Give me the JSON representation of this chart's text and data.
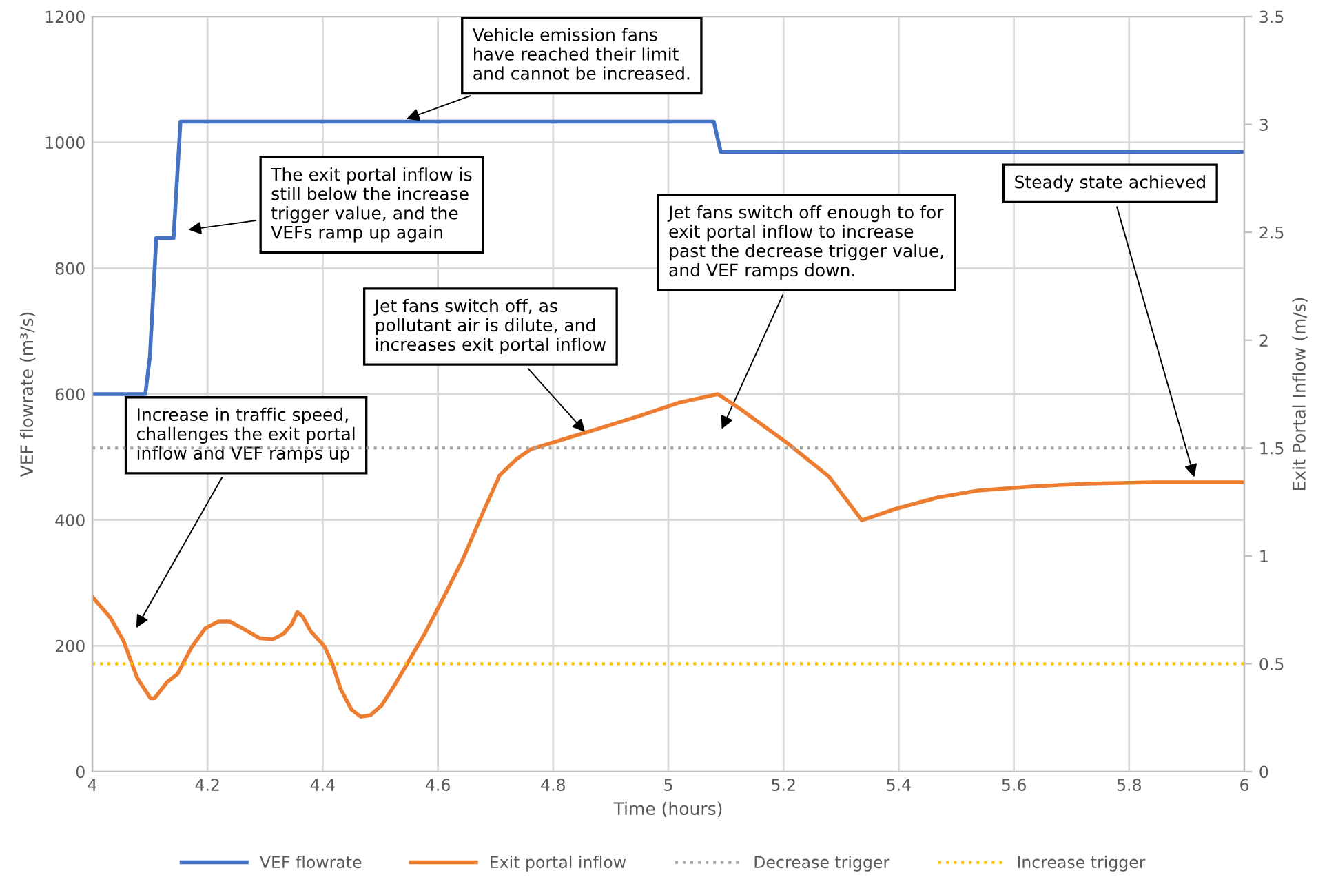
{
  "chart_data": {
    "type": "line",
    "xlabel": "Time (hours)",
    "ylabel": "VEF flowrate (m³/s)",
    "y2label": "Exit Portal Inflow (m/s)",
    "xlim": [
      4,
      6
    ],
    "xticks": [
      4,
      4.2,
      4.4,
      4.6,
      4.8,
      5,
      5.2,
      5.4,
      5.6,
      5.8,
      6
    ],
    "ylim": [
      0,
      1200
    ],
    "yticks": [
      0,
      200,
      400,
      600,
      800,
      1000,
      1200
    ],
    "y2lim": [
      0,
      3.5
    ],
    "y2ticks": [
      0,
      0.5,
      1,
      1.5,
      2,
      2.5,
      3,
      3.5
    ],
    "grid": true,
    "legend": "bottom",
    "marker": "none",
    "series": [
      {
        "name": "VEF flowrate",
        "color": "#4472c4",
        "line_style": "solid",
        "x": [
          4,
          4.092,
          4.1,
          4.111,
          4.141,
          4.153,
          5.079,
          5.091,
          6
        ],
        "values": [
          600,
          600,
          660,
          848,
          848,
          1033,
          1033,
          985,
          985
        ]
      },
      {
        "name": "Exit portal inflow",
        "color": "#ed7d31",
        "line_style": "solid",
        "axis": "y2",
        "x": [
          4,
          4.031,
          4.054,
          4.078,
          4.101,
          4.108,
          4.13,
          4.148,
          4.172,
          4.196,
          4.219,
          4.238,
          4.261,
          4.29,
          4.313,
          4.332,
          4.346,
          4.356,
          4.365,
          4.379,
          4.403,
          4.417,
          4.431,
          4.45,
          4.466,
          4.483,
          4.502,
          4.525,
          4.549,
          4.577,
          4.608,
          4.643,
          4.678,
          4.707,
          4.737,
          4.761,
          4.832,
          4.879,
          4.949,
          5.02,
          5.086,
          5.126,
          5.208,
          5.279,
          5.336,
          5.397,
          5.468,
          5.538,
          5.633,
          5.727,
          5.845,
          6
        ],
        "values": [
          0.81,
          0.715,
          0.607,
          0.434,
          0.34,
          0.34,
          0.415,
          0.453,
          0.575,
          0.664,
          0.696,
          0.696,
          0.664,
          0.619,
          0.613,
          0.639,
          0.683,
          0.74,
          0.72,
          0.651,
          0.581,
          0.498,
          0.383,
          0.287,
          0.255,
          0.262,
          0.306,
          0.402,
          0.511,
          0.639,
          0.798,
          0.983,
          1.2,
          1.373,
          1.45,
          1.494,
          1.552,
          1.59,
          1.648,
          1.711,
          1.75,
          1.679,
          1.52,
          1.367,
          1.165,
          1.22,
          1.271,
          1.303,
          1.322,
          1.335,
          1.341,
          1.341
        ]
      },
      {
        "name": "Decrease trigger",
        "color": "#a5a5a5",
        "line_style": "dotted",
        "axis": "y2",
        "x": [
          4,
          6
        ],
        "values": [
          1.5,
          1.5
        ]
      },
      {
        "name": "Increase trigger",
        "color": "#ffc000",
        "line_style": "dotted",
        "axis": "y2",
        "x": [
          4,
          6
        ],
        "values": [
          0.5,
          0.5
        ]
      }
    ],
    "annotations": [
      {
        "text": "Vehicle emission fans\nhave reached their limit\nand cannot be increased.",
        "x": 4.539,
        "y": 1035
      },
      "The exit portal inflow is\nstill below the increase\ntrigger value, and the\nVEFs ramp up again",
      "Jet fans switch off enough to for\nexit portal inflow to increase\npast the decrease trigger value,\nand VEF ramps down.",
      {
        "text": "Steady state achieved",
        "x": 5.915,
        "y": 462
      },
      {
        "text": "Jet fans switch off, as\npollutant air is dilute, and\nincreases exit portal inflow",
        "x": 4.86,
        "y": 535
      },
      "Increase in traffic speed,\nchallenges the exit portal\ninflow and VEF ramps up"
    ]
  }
}
